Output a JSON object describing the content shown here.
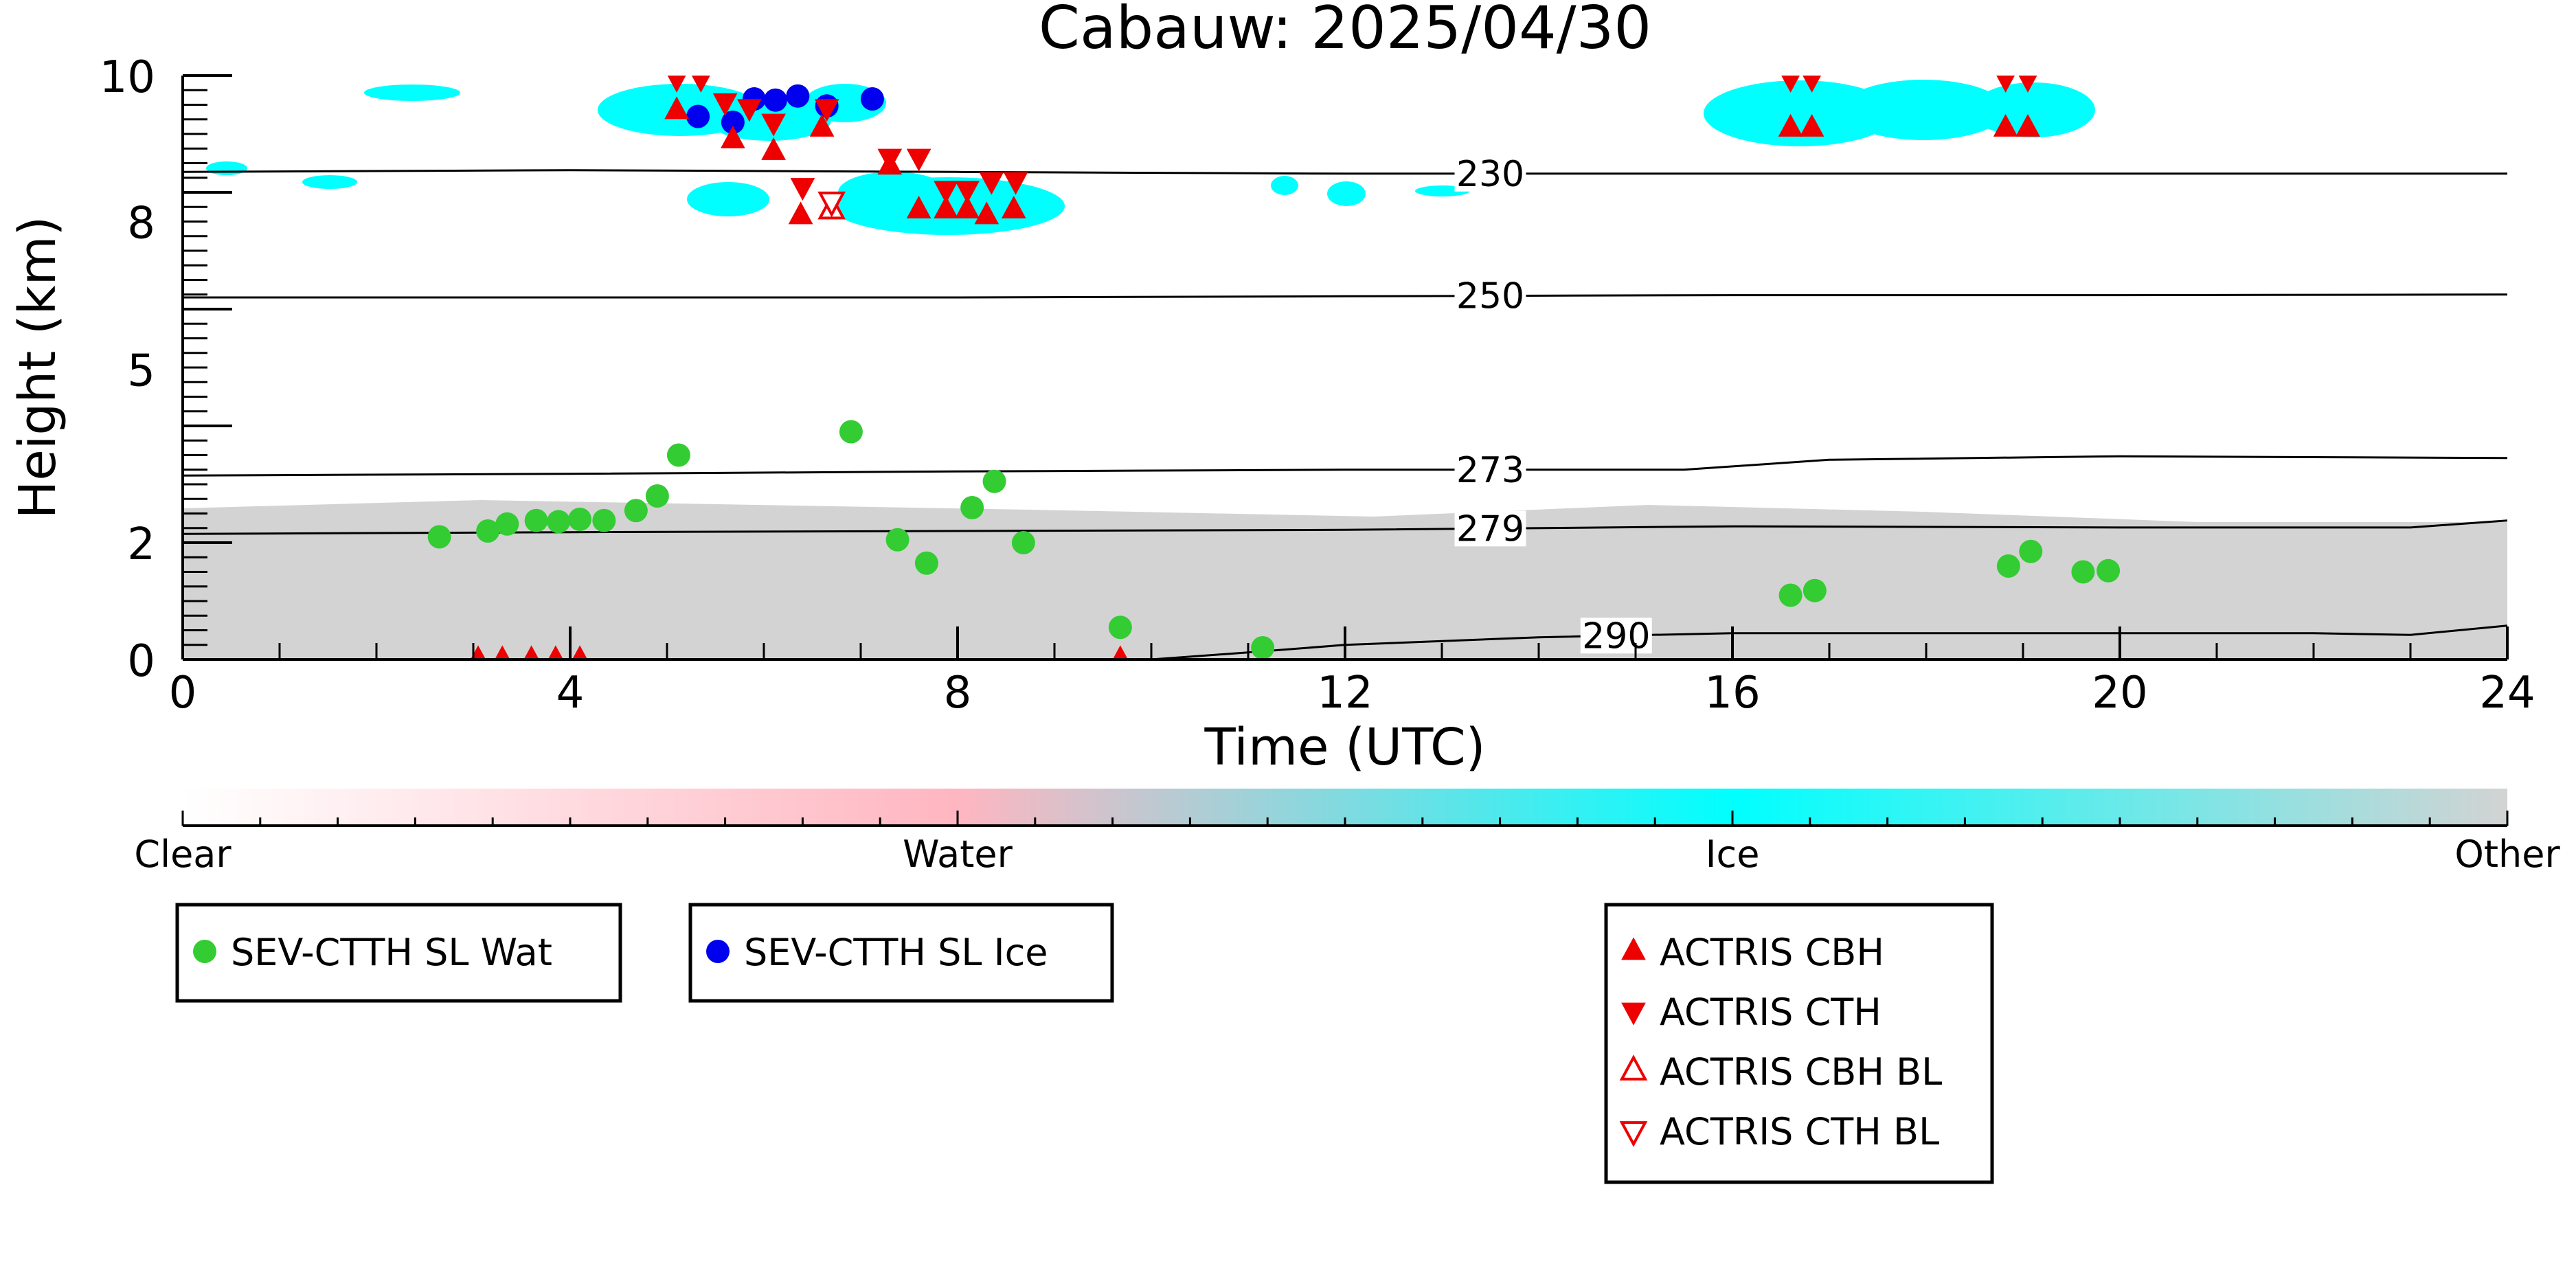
{
  "chart_data": {
    "type": "scatter",
    "title": "Cabauw: 2025/04/30",
    "xlabel": "Time (UTC)",
    "ylabel": "Height (km)",
    "xlim": [
      0,
      24
    ],
    "ylim": [
      0,
      10
    ],
    "x_ticks": [
      0,
      4,
      8,
      12,
      16,
      20,
      24
    ],
    "y_tick_labels": [
      "0",
      "2",
      "5",
      "8",
      "10"
    ],
    "colorbar": {
      "labels": [
        "Clear",
        "Water",
        "Ice",
        "Other"
      ],
      "colors": [
        "#ffffff",
        "#ffb6c1",
        "#00ffff",
        "#d3d3d3"
      ]
    },
    "isotherms": [
      {
        "label": "230",
        "points": [
          [
            0,
            8.35
          ],
          [
            4,
            8.38
          ],
          [
            8,
            8.35
          ],
          [
            12,
            8.32
          ],
          [
            16,
            8.32
          ],
          [
            20,
            8.32
          ],
          [
            24,
            8.32
          ]
        ]
      },
      {
        "label": "250",
        "points": [
          [
            0,
            6.2
          ],
          [
            4,
            6.2
          ],
          [
            8,
            6.2
          ],
          [
            12,
            6.22
          ],
          [
            16,
            6.24
          ],
          [
            20,
            6.24
          ],
          [
            24,
            6.25
          ]
        ]
      },
      {
        "label": "273",
        "points": [
          [
            0,
            3.15
          ],
          [
            4,
            3.18
          ],
          [
            8,
            3.22
          ],
          [
            12,
            3.25
          ],
          [
            15.5,
            3.25
          ],
          [
            17,
            3.42
          ],
          [
            20,
            3.48
          ],
          [
            24,
            3.45
          ]
        ]
      },
      {
        "label": "279",
        "points": [
          [
            0,
            2.15
          ],
          [
            4,
            2.18
          ],
          [
            8,
            2.2
          ],
          [
            12,
            2.22
          ],
          [
            16,
            2.28
          ],
          [
            20,
            2.26
          ],
          [
            23,
            2.26
          ],
          [
            24,
            2.38
          ]
        ]
      },
      {
        "label": "290",
        "points": [
          [
            10,
            0.0
          ],
          [
            11,
            0.12
          ],
          [
            12,
            0.25
          ],
          [
            14,
            0.38
          ],
          [
            16,
            0.45
          ],
          [
            18,
            0.45
          ],
          [
            20,
            0.45
          ],
          [
            22,
            0.45
          ],
          [
            23,
            0.42
          ],
          [
            24,
            0.58
          ]
        ]
      }
    ],
    "series": [
      {
        "name": "SEV-CTTH SL Wat",
        "color": "#33cc33",
        "marker": "circle",
        "x": [
          2.65,
          3.15,
          3.35,
          3.65,
          3.88,
          4.1,
          4.35,
          4.68,
          4.9,
          5.12,
          6.9,
          7.38,
          7.68,
          8.15,
          8.38,
          8.68,
          9.68,
          11.15,
          16.6,
          16.85,
          18.85,
          19.08,
          19.62,
          19.88
        ],
        "y": [
          2.1,
          2.2,
          2.32,
          2.38,
          2.36,
          2.4,
          2.38,
          2.55,
          2.8,
          3.5,
          3.9,
          2.05,
          1.65,
          2.6,
          3.05,
          2.0,
          0.55,
          0.2,
          1.1,
          1.18,
          1.6,
          1.85,
          1.5,
          1.52
        ]
      },
      {
        "name": "SEV-CTTH SL Ice",
        "color": "#0000ee",
        "marker": "circle",
        "x": [
          5.32,
          5.68,
          5.9,
          6.12,
          6.35,
          6.65,
          7.12
        ],
        "y": [
          9.3,
          9.2,
          9.6,
          9.58,
          9.65,
          9.48,
          9.6
        ]
      },
      {
        "name": "ACTRIS CBH",
        "color": "#ee0000",
        "marker": "triangle-up",
        "x": [
          5.1,
          5.68,
          6.1,
          6.6,
          6.38,
          7.3,
          7.6,
          7.88,
          8.1,
          8.3,
          8.58,
          16.6,
          16.82,
          18.82,
          19.05,
          3.05,
          3.3,
          3.6,
          3.85,
          4.1,
          9.68
        ],
        "y": [
          9.4,
          8.9,
          8.7,
          9.1,
          7.6,
          8.45,
          7.7,
          7.7,
          7.7,
          7.6,
          7.7,
          9.1,
          9.1,
          9.1,
          9.1,
          0.0,
          0.0,
          0.0,
          0.0,
          0.0,
          0.0
        ]
      },
      {
        "name": "ACTRIS CTH",
        "color": "#ee0000",
        "marker": "triangle-down",
        "x": [
          5.1,
          5.35,
          5.6,
          5.85,
          6.1,
          6.4,
          6.65,
          7.3,
          7.6,
          7.88,
          8.1,
          8.35,
          8.6,
          16.6,
          16.82,
          18.82,
          19.05
        ],
        "y": [
          9.95,
          9.95,
          9.55,
          9.45,
          9.2,
          8.1,
          9.45,
          8.6,
          8.6,
          8.05,
          8.05,
          8.2,
          8.2,
          9.95,
          9.95,
          9.95,
          9.95
        ]
      },
      {
        "name": "ACTRIS CBH BL",
        "color": "#ee0000",
        "marker": "triangle-up-open",
        "x": [
          6.7
        ],
        "y": [
          7.7
        ]
      },
      {
        "name": "ACTRIS CTH BL",
        "color": "#ee0000",
        "marker": "triangle-down-open",
        "x": [
          6.7
        ],
        "y": [
          7.85
        ]
      }
    ],
    "legend_groups": [
      [
        "SEV-CTTH SL Wat"
      ],
      [
        "SEV-CTTH SL Ice"
      ],
      [
        "ACTRIS CBH",
        "ACTRIS CTH",
        "ACTRIS CBH BL",
        "ACTRIS CTH BL"
      ]
    ]
  }
}
